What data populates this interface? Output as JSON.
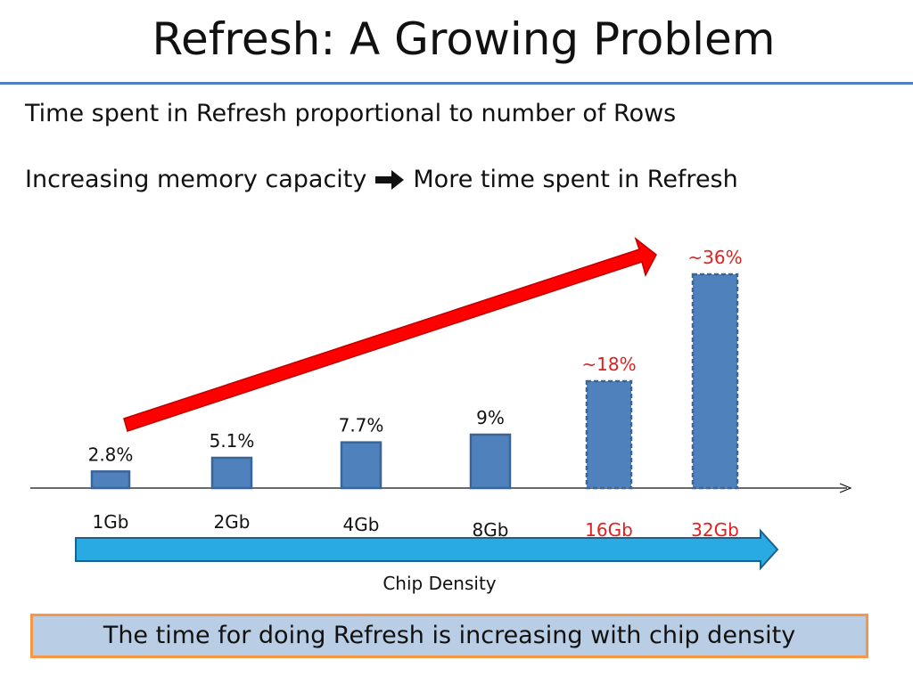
{
  "slide": {
    "title": "Refresh: A Growing Problem",
    "line1": "Time spent in Refresh proportional to number of Rows",
    "line2_left": "Increasing memory capacity",
    "line2_icon": "right-arrow-icon",
    "line2_right": "More time spent in Refresh",
    "callout": "The time for doing Refresh is increasing with chip density"
  },
  "colors": {
    "accent_blue": "#4f81bd",
    "bar_blue": "#4f81bd",
    "bar_border": "#3a6597",
    "projected_label": "#e02020",
    "trend_arrow": "#ff0000",
    "axis_arrow": "#29aae2",
    "callout_fill": "#b9cde5",
    "callout_border": "#f79646"
  },
  "chart_data": {
    "type": "bar",
    "categories": [
      "1Gb",
      "2Gb",
      "4Gb",
      "8Gb",
      "16Gb",
      "32Gb"
    ],
    "values": [
      2.8,
      5.1,
      7.7,
      9,
      18,
      36
    ],
    "value_labels": [
      "2.8%",
      "5.1%",
      "7.7%",
      "9%",
      "~18%",
      "~36%"
    ],
    "projected": [
      false,
      false,
      false,
      false,
      true,
      true
    ],
    "xlabel": "Chip Density",
    "ylabel": "",
    "grid": false,
    "legend": "none"
  }
}
